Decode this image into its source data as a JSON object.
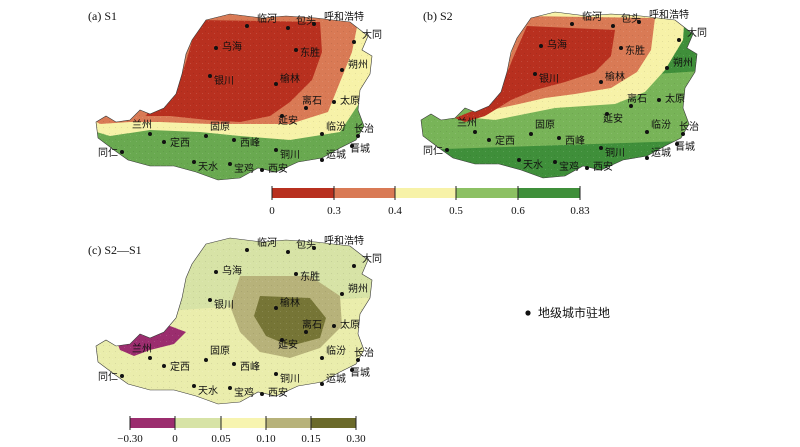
{
  "panels": [
    {
      "id": "a",
      "label": "(a) S1",
      "scheme": "main",
      "zones": [
        {
          "cls": 0,
          "color": "#b8301f"
        },
        {
          "cls": 1,
          "color": "#d97a55"
        },
        {
          "cls": 2,
          "color": "#f7f2a8"
        },
        {
          "cls": 3,
          "color": "#8cc063"
        },
        {
          "cls": 4,
          "color": "#3f8f3a"
        }
      ]
    },
    {
      "id": "b",
      "label": "(b) S2",
      "scheme": "main"
    },
    {
      "id": "c",
      "label": "(c) S2—S1",
      "scheme": "diff"
    }
  ],
  "cities": [
    {
      "name": "临河"
    },
    {
      "name": "包头"
    },
    {
      "name": "呼和浩特"
    },
    {
      "name": "大同"
    },
    {
      "name": "乌海"
    },
    {
      "name": "东胜"
    },
    {
      "name": "朔州"
    },
    {
      "name": "银川"
    },
    {
      "name": "榆林"
    },
    {
      "name": "太原"
    },
    {
      "name": "离石"
    },
    {
      "name": "延安"
    },
    {
      "name": "兰州"
    },
    {
      "name": "定西"
    },
    {
      "name": "固原"
    },
    {
      "name": "西峰"
    },
    {
      "name": "临汾"
    },
    {
      "name": "长治"
    },
    {
      "name": "晋城"
    },
    {
      "name": "同仁"
    },
    {
      "name": "天水"
    },
    {
      "name": "宝鸡"
    },
    {
      "name": "铜川"
    },
    {
      "name": "西安"
    },
    {
      "name": "运城"
    }
  ],
  "legend_main": {
    "ticks": [
      "0",
      "0.3",
      "0.4",
      "0.5",
      "0.6",
      "0.83"
    ],
    "colors": [
      "#b8301f",
      "#d97a55",
      "#f7f2a8",
      "#8cc063",
      "#3f8f3a"
    ]
  },
  "legend_diff": {
    "ticks": [
      "−0.30",
      "0",
      "0.05",
      "0.10",
      "0.15",
      "0.30"
    ],
    "colors": [
      "#9b2d6e",
      "#d7e3a6",
      "#f7f4b0",
      "#b7b27a",
      "#6b6a2a"
    ]
  },
  "point_legend": {
    "label": "地级城市驻地"
  }
}
